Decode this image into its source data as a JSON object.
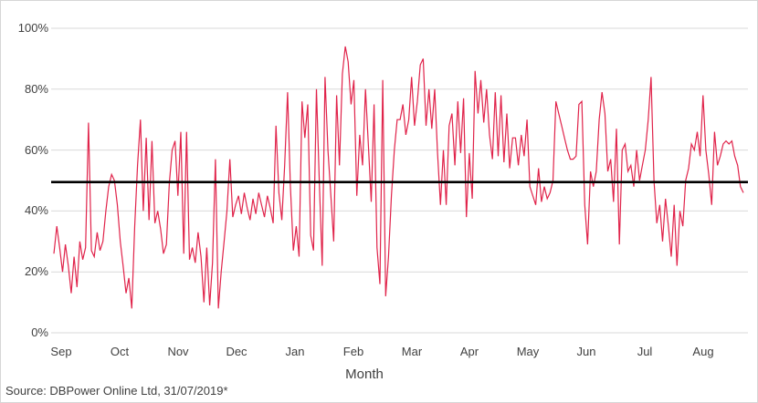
{
  "chart_data": {
    "type": "line",
    "title": "",
    "xlabel": "Month",
    "ylabel": "",
    "ylim": [
      0,
      100
    ],
    "grid": true,
    "legend": "none",
    "grid_color": "#d9d9d9",
    "y_ticks": [
      {
        "value": 0,
        "label": "0%"
      },
      {
        "value": 20,
        "label": "20%"
      },
      {
        "value": 40,
        "label": "40%"
      },
      {
        "value": 60,
        "label": "60%"
      },
      {
        "value": 80,
        "label": "80%"
      },
      {
        "value": 100,
        "label": "100%"
      }
    ],
    "x_tick_labels": [
      "Sep",
      "Oct",
      "Nov",
      "Dec",
      "Jan",
      "Feb",
      "Mar",
      "Apr",
      "May",
      "Jun",
      "Jul",
      "Aug"
    ],
    "reference_line": {
      "value": 49.5,
      "color": "#000000"
    },
    "series": [
      {
        "name": "daily-percentage",
        "color": "#e0234a",
        "values": [
          26,
          35,
          28,
          20,
          29,
          22,
          13,
          25,
          15,
          30,
          24,
          28,
          69,
          27,
          25,
          33,
          27,
          30,
          40,
          48,
          52,
          50,
          42,
          30,
          22,
          13,
          18,
          8,
          35,
          55,
          70,
          40,
          64,
          37,
          63,
          36,
          40,
          34,
          26,
          29,
          49,
          60,
          63,
          45,
          66,
          26,
          66,
          24,
          28,
          23,
          33,
          25,
          10,
          28,
          9,
          23,
          57,
          8,
          20,
          30,
          40,
          57,
          38,
          42,
          45,
          39,
          46,
          41,
          37,
          44,
          39,
          46,
          42,
          38,
          45,
          41,
          36,
          68,
          46,
          37,
          55,
          79,
          48,
          27,
          35,
          25,
          76,
          64,
          75,
          32,
          27,
          80,
          50,
          22,
          84,
          60,
          45,
          30,
          78,
          55,
          85,
          94,
          89,
          75,
          83,
          45,
          65,
          55,
          80,
          62,
          43,
          75,
          28,
          16,
          83,
          12,
          25,
          45,
          60,
          70,
          70,
          75,
          65,
          70,
          84,
          68,
          76,
          88,
          90,
          68,
          80,
          67,
          80,
          59,
          42,
          60,
          42,
          68,
          72,
          55,
          76,
          59,
          77,
          38,
          59,
          44,
          86,
          72,
          83,
          69,
          80,
          65,
          57,
          79,
          58,
          78,
          56,
          72,
          54,
          64,
          64,
          55,
          65,
          58,
          70,
          48,
          45,
          42,
          54,
          43,
          48,
          44,
          46,
          50,
          76,
          72,
          68,
          64,
          60,
          57,
          57,
          58,
          75,
          76,
          42,
          29,
          53,
          48,
          53,
          70,
          79,
          72,
          53,
          57,
          43,
          67,
          29,
          60,
          62,
          53,
          55,
          48,
          60,
          50,
          55,
          60,
          70,
          84,
          50,
          36,
          42,
          30,
          44,
          35,
          25,
          42,
          22,
          40,
          35,
          50,
          54,
          62,
          60,
          66,
          58,
          78,
          60,
          52,
          42,
          66,
          55,
          58,
          62,
          63,
          62,
          63,
          58,
          55,
          48,
          46
        ]
      }
    ]
  },
  "footer": {
    "source_note": "Source: DBPower Online Ltd, 31/07/2019*"
  }
}
